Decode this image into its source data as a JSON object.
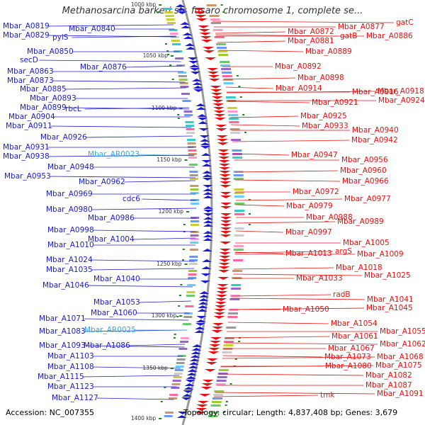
{
  "title": "Methanosarcina barkeri str. fusaro chromosome 1, complete se...",
  "footer": {
    "accession": "Accession: NC_007355",
    "info": "Topology: circular; Length: 4,837,408 bp; Genes: 3,679"
  },
  "colors": {
    "left": "#1b1bd0",
    "right": "#e81010",
    "rna": "#33aaee",
    "backbone": "#999999",
    "tick_mark": "#1a8a1a"
  },
  "ticks": [
    "1000 kbp",
    "1050 kbp",
    "1100 kbp",
    "1150 kbp",
    "1200 kbp",
    "1250 kbp",
    "1300 kbp",
    "1350 kbp",
    "1400 kbp"
  ],
  "left_labels": [
    {
      "text": "Mbar_A0819"
    },
    {
      "text": "Mbar_A0840"
    },
    {
      "text": "Mbar_A0829"
    },
    {
      "text": "pylS"
    },
    {
      "text": "Mbar_A0850"
    },
    {
      "text": "secD"
    },
    {
      "text": "Mbar_A0876"
    },
    {
      "text": "Mbar_A0863"
    },
    {
      "text": "Mbar_A0873"
    },
    {
      "text": "Mbar_A0885"
    },
    {
      "text": "Mbar_A0893"
    },
    {
      "text": "Mbar_A0899"
    },
    {
      "text": "rbcL"
    },
    {
      "text": "Mbar_A0904"
    },
    {
      "text": "Mbar_A0911"
    },
    {
      "text": "Mbar_A0926"
    },
    {
      "text": "Mbar_A0931"
    },
    {
      "text": "Mbar_AR0023",
      "rna": true
    },
    {
      "text": "Mbar_A0938"
    },
    {
      "text": "Mbar_A0948"
    },
    {
      "text": "Mbar_A0953"
    },
    {
      "text": "Mbar_A0962"
    },
    {
      "text": "Mbar_A0969"
    },
    {
      "text": "cdc6"
    },
    {
      "text": "Mbar_A0980"
    },
    {
      "text": "Mbar_A0986"
    },
    {
      "text": "Mbar_A0998"
    },
    {
      "text": "Mbar_A1004"
    },
    {
      "text": "Mbar_A1010"
    },
    {
      "text": "Mbar_A1024"
    },
    {
      "text": "Mbar_A1035"
    },
    {
      "text": "Mbar_A1040"
    },
    {
      "text": "Mbar_A1046"
    },
    {
      "text": "Mbar_A1053"
    },
    {
      "text": "Mbar_A1060"
    },
    {
      "text": "Mbar_A1071"
    },
    {
      "text": "Mbar_A1083"
    },
    {
      "text": "Mbar_AR0025",
      "rna": true
    },
    {
      "text": "Mbar_A1093"
    },
    {
      "text": "Mbar_A1086"
    },
    {
      "text": "Mbar_A1103"
    },
    {
      "text": "Mbar_A1108"
    },
    {
      "text": "Mbar_A1115"
    },
    {
      "text": "Mbar_A1123"
    },
    {
      "text": "Mbar_A1127"
    }
  ],
  "right_labels": [
    {
      "text": "gatC"
    },
    {
      "text": "Mbar_A0877"
    },
    {
      "text": "Mbar_A0872"
    },
    {
      "text": "gatB"
    },
    {
      "text": "Mbar_A0886"
    },
    {
      "text": "Mbar_A0881"
    },
    {
      "text": "Mbar_A0889"
    },
    {
      "text": "Mbar_A0892"
    },
    {
      "text": "Mbar_A0898"
    },
    {
      "text": "Mbar_A0914"
    },
    {
      "text": "Mbar_A0916"
    },
    {
      "text": "Mbar_A0918"
    },
    {
      "text": "Mbar_A0921"
    },
    {
      "text": "Mbar_A0924"
    },
    {
      "text": "Mbar_A0925"
    },
    {
      "text": "Mbar_A0933"
    },
    {
      "text": "Mbar_A0940"
    },
    {
      "text": "Mbar_A0942"
    },
    {
      "text": "Mbar_A0947"
    },
    {
      "text": "Mbar_A0956"
    },
    {
      "text": "Mbar_A0960"
    },
    {
      "text": "Mbar_A0966"
    },
    {
      "text": "Mbar_A0972"
    },
    {
      "text": "Mbar_A0977"
    },
    {
      "text": "Mbar_A0979"
    },
    {
      "text": "Mbar_A0988"
    },
    {
      "text": "Mbar_A0989"
    },
    {
      "text": "Mbar_A0997"
    },
    {
      "text": "Mbar_A1005"
    },
    {
      "text": "argS"
    },
    {
      "text": "Mbar_A1013"
    },
    {
      "text": "Mbar_A1009"
    },
    {
      "text": "Mbar_A1018"
    },
    {
      "text": "Mbar_A1025"
    },
    {
      "text": "Mbar_A1033"
    },
    {
      "text": "radB"
    },
    {
      "text": "Mbar_A1041"
    },
    {
      "text": "Mbar_A1050"
    },
    {
      "text": "Mbar_A1045"
    },
    {
      "text": "Mbar_A1054"
    },
    {
      "text": "Mbar_A1055"
    },
    {
      "text": "Mbar_A1061"
    },
    {
      "text": "Mbar_A1062"
    },
    {
      "text": "Mbar_A1067"
    },
    {
      "text": "Mbar_A1068"
    },
    {
      "text": "Mbar_A1073"
    },
    {
      "text": "Mbar_A1080"
    },
    {
      "text": "Mbar_A1075"
    },
    {
      "text": "Mbar_A1082"
    },
    {
      "text": "Mbar_A1087"
    },
    {
      "text": "tmk"
    },
    {
      "text": "Mbar_A1091"
    }
  ]
}
